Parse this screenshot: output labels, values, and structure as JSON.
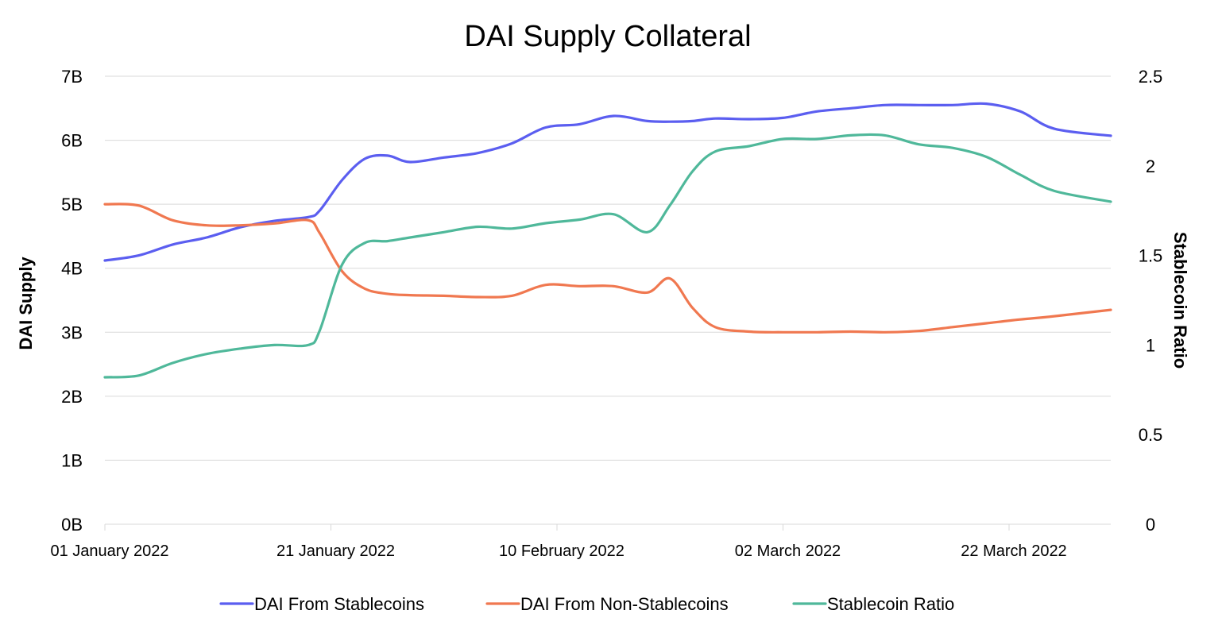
{
  "chart_data": {
    "type": "line",
    "title": "DAI Supply Collateral",
    "xlabel": "",
    "ylabel": "DAI Supply",
    "y2label": "Stablecoin Ratio",
    "x_tick_labels": [
      "01 January 2022",
      "21 January 2022",
      "10 February 2022",
      "02 March 2022",
      "22 March 2022"
    ],
    "y_tick_labels": [
      "0B",
      "1B",
      "2B",
      "3B",
      "4B",
      "5B",
      "6B",
      "7B"
    ],
    "y2_tick_labels": [
      "0",
      "0.5",
      "1",
      "1.5",
      "2",
      "2.5"
    ],
    "ylim": [
      0,
      7
    ],
    "y2lim": [
      0,
      2.5
    ],
    "y_unit": "billions",
    "xlim": [
      "2022-01-01",
      "2022-03-31"
    ],
    "grid": true,
    "legend_position": "bottom",
    "x": [
      "2022-01-01",
      "2022-01-04",
      "2022-01-07",
      "2022-01-10",
      "2022-01-13",
      "2022-01-16",
      "2022-01-19",
      "2022-01-20",
      "2022-01-22",
      "2022-01-24",
      "2022-01-26",
      "2022-01-28",
      "2022-01-31",
      "2022-02-03",
      "2022-02-06",
      "2022-02-09",
      "2022-02-12",
      "2022-02-15",
      "2022-02-18",
      "2022-02-20",
      "2022-02-22",
      "2022-02-24",
      "2022-02-27",
      "2022-03-02",
      "2022-03-05",
      "2022-03-08",
      "2022-03-11",
      "2022-03-14",
      "2022-03-17",
      "2022-03-20",
      "2022-03-23",
      "2022-03-26",
      "2022-03-31"
    ],
    "series": [
      {
        "name": "DAI From Stablecoins",
        "axis": "left",
        "color": "#5b5ef0",
        "values": [
          4.12,
          4.2,
          4.37,
          4.48,
          4.64,
          4.74,
          4.8,
          4.9,
          5.38,
          5.71,
          5.76,
          5.66,
          5.73,
          5.8,
          5.95,
          6.2,
          6.25,
          6.38,
          6.3,
          6.29,
          6.3,
          6.34,
          6.33,
          6.35,
          6.45,
          6.5,
          6.55,
          6.55,
          6.55,
          6.57,
          6.45,
          6.18,
          6.07
        ]
      },
      {
        "name": "DAI From Non-Stablecoins",
        "axis": "left",
        "color": "#f07850",
        "values": [
          5.0,
          4.98,
          4.75,
          4.67,
          4.67,
          4.7,
          4.75,
          4.55,
          3.95,
          3.68,
          3.6,
          3.58,
          3.57,
          3.55,
          3.57,
          3.74,
          3.72,
          3.72,
          3.62,
          3.84,
          3.38,
          3.08,
          3.01,
          3.0,
          3.0,
          3.01,
          3.0,
          3.02,
          3.08,
          3.14,
          3.2,
          3.25,
          3.35
        ]
      },
      {
        "name": "Stablecoin Ratio",
        "axis": "right",
        "color": "#4fb89a",
        "values": [
          0.82,
          0.83,
          0.9,
          0.95,
          0.98,
          1.0,
          1.0,
          1.08,
          1.45,
          1.57,
          1.58,
          1.6,
          1.63,
          1.66,
          1.65,
          1.68,
          1.7,
          1.73,
          1.63,
          1.78,
          1.97,
          2.08,
          2.11,
          2.15,
          2.15,
          2.17,
          2.17,
          2.12,
          2.1,
          2.05,
          1.95,
          1.86,
          1.8
        ]
      }
    ]
  }
}
